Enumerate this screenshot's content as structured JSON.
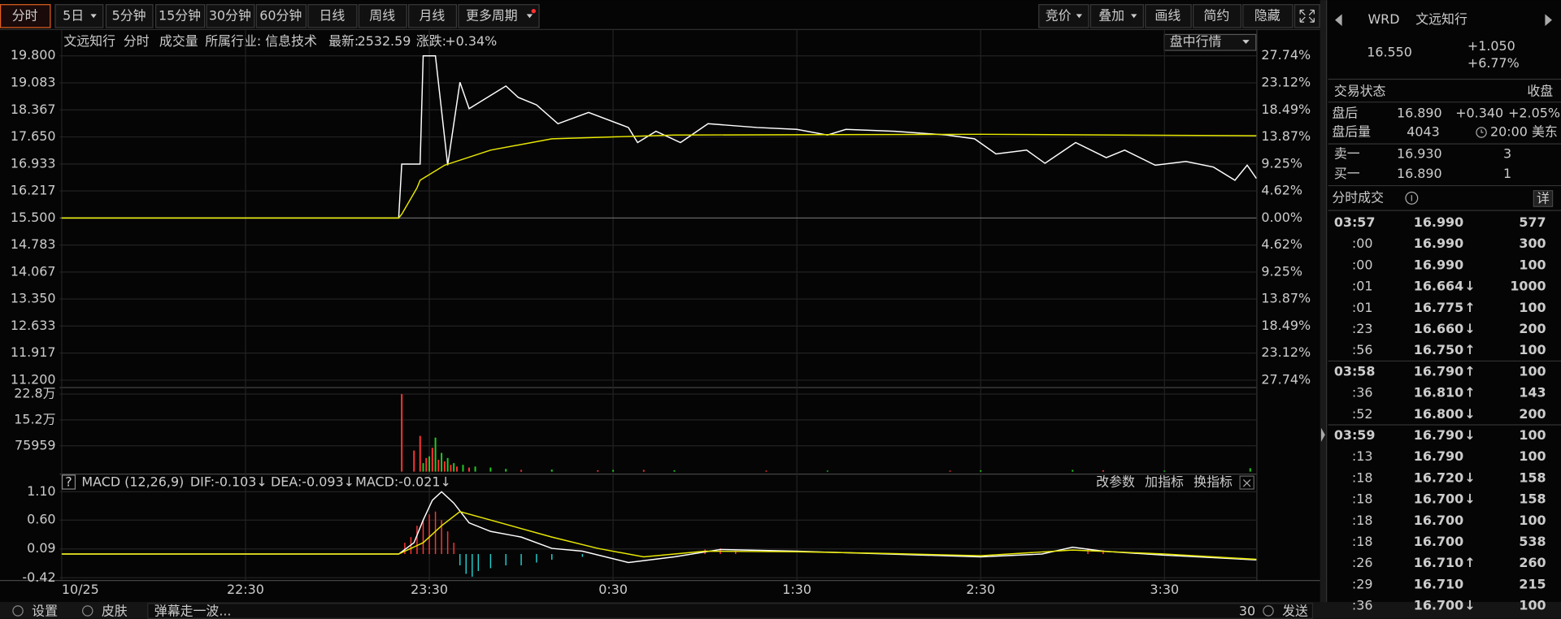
{
  "toolbar": {
    "tabs": [
      "分时",
      "5日",
      "5分钟",
      "15分钟",
      "30分钟",
      "60分钟",
      "日线",
      "周线",
      "月线",
      "更多周期"
    ],
    "right": [
      "竞价",
      "叠加",
      "画线",
      "简约",
      "隐藏"
    ]
  },
  "header": {
    "name": "文远知行",
    "mode": "分时",
    "volume": "成交量",
    "industry": "所属行业: 信息技术",
    "latest_label": "最新:",
    "latest": "2532.59",
    "change_label": "涨跌:",
    "change": "+0.34%",
    "dropdown": "盘中行情"
  },
  "chart_data": [
    {
      "type": "line",
      "x": [
        0,
        110,
        111,
        117,
        118,
        122,
        126,
        130,
        133,
        145,
        149,
        155,
        162,
        172,
        185,
        188,
        194,
        202,
        211,
        227,
        240,
        250,
        256,
        272,
        289,
        298,
        305,
        315,
        321,
        331,
        341,
        347,
        357,
        367,
        376,
        383,
        387,
        390
      ],
      "series": [
        {
          "color": "#ffffff",
          "values": [
            15.5,
            15.5,
            16.93,
            16.93,
            19.8,
            19.8,
            16.9,
            19.1,
            18.4,
            19.0,
            18.7,
            18.5,
            18.0,
            18.3,
            17.9,
            17.5,
            17.8,
            17.5,
            18.0,
            17.9,
            17.85,
            17.7,
            17.85,
            17.8,
            17.7,
            17.6,
            17.2,
            17.3,
            16.95,
            17.5,
            17.1,
            17.3,
            16.9,
            17.0,
            16.85,
            16.5,
            16.9,
            16.55
          ]
        },
        {
          "color": "#e8e800",
          "x": [
            0,
            110,
            111,
            116,
            117,
            125,
            140,
            160,
            200,
            300,
            390
          ],
          "values": [
            15.5,
            15.5,
            15.6,
            16.3,
            16.5,
            16.9,
            17.3,
            17.6,
            17.7,
            17.72,
            17.68
          ]
        }
      ],
      "xlim": [
        0,
        390
      ],
      "xticks": [
        {
          "value": 0,
          "label": "10/25"
        },
        {
          "value": 60,
          "label": "22:30"
        },
        {
          "value": 120,
          "label": "23:30"
        },
        {
          "value": 180,
          "label": "0:30"
        },
        {
          "value": 240,
          "label": "1:30"
        },
        {
          "value": 300,
          "label": "2:30"
        },
        {
          "value": 360,
          "label": "3:30"
        }
      ],
      "ylim": [
        11.2,
        19.8
      ],
      "yticks": [
        {
          "value": 19.8,
          "label": "19.800"
        },
        19.083,
        18.367,
        {
          "value": 17.65,
          "label": "17.650"
        },
        16.933,
        16.217,
        {
          "value": 15.5,
          "label": "15.500"
        },
        14.783,
        14.067,
        {
          "value": 13.35,
          "label": "13.350"
        },
        12.633,
        11.917,
        {
          "value": 11.2,
          "label": "11.200"
        }
      ],
      "y2lim": [
        -27.74,
        27.74
      ],
      "y2ticks": [
        {
          "value": 27.74,
          "label": "27.74%"
        },
        {
          "value": 23.12,
          "label": "23.12%"
        },
        {
          "value": 18.49,
          "label": "18.49%"
        },
        {
          "value": 13.87,
          "label": "13.87%"
        },
        {
          "value": 9.25,
          "label": "9.25%"
        },
        {
          "value": 4.62,
          "label": "4.62%"
        },
        {
          "value": 0,
          "label": "0.00%"
        },
        {
          "value": -4.62,
          "label": "4.62%"
        },
        {
          "value": -9.25,
          "label": "9.25%"
        },
        {
          "value": -13.87,
          "label": "13.87%"
        },
        {
          "value": -18.49,
          "label": "18.49%"
        },
        {
          "value": -23.12,
          "label": "23.12%"
        },
        {
          "value": -27.74,
          "label": "27.74%"
        }
      ],
      "grid": true
    },
    {
      "type": "bar",
      "up": {
        "color": "#ff3333",
        "x": [
          111,
          115,
          117,
          119,
          121,
          123,
          125,
          127,
          129,
          133,
          150,
          175,
          190,
          230,
          290,
          340
        ],
        "values": [
          228000,
          62000,
          105000,
          40000,
          70000,
          35000,
          30000,
          20000,
          15000,
          12000,
          5000,
          4000,
          5000,
          3000,
          3000,
          4000
        ]
      },
      "down": {
        "color": "#22cc22",
        "x": [
          118,
          120,
          122,
          124,
          126,
          128,
          131,
          135,
          140,
          145,
          160,
          180,
          200,
          250,
          300,
          330,
          360,
          388
        ],
        "values": [
          25000,
          45000,
          100000,
          55000,
          40000,
          25000,
          20000,
          15000,
          12000,
          8000,
          6000,
          5000,
          4000,
          3000,
          4000,
          5000,
          3000,
          10000
        ]
      },
      "xlim": [
        0,
        390
      ],
      "ylim": [
        0,
        228000
      ],
      "yticks": [
        {
          "value": 228000,
          "label": "22.8万"
        },
        {
          "value": 152000,
          "label": "15.2万"
        },
        75959
      ]
    },
    {
      "type": "macd",
      "help": "?",
      "title": "MACD (12,26,9)",
      "dif_label": "DIF:-0.103↓",
      "dea_label": "DEA:-0.093↓",
      "macd_label": "MACD:-0.021↓",
      "buttons": [
        "改参数",
        "加指标",
        "换指标"
      ],
      "hist": {
        "x": [
          112,
          114,
          116,
          118,
          120,
          122,
          124,
          126,
          128,
          130,
          132,
          134,
          136,
          140,
          145,
          150,
          155,
          160,
          170,
          210,
          215,
          220,
          335,
          340
        ],
        "values": [
          0.2,
          0.3,
          0.5,
          0.6,
          0.7,
          0.75,
          0.6,
          0.4,
          0.2,
          -0.2,
          -0.35,
          -0.4,
          -0.3,
          -0.25,
          -0.2,
          -0.2,
          -0.15,
          -0.1,
          -0.05,
          0.08,
          0.1,
          0.06,
          0.1,
          0.07
        ]
      },
      "series": [
        {
          "color": "#ffffff",
          "x": [
            0,
            110,
            115,
            118,
            121,
            124,
            128,
            133,
            140,
            150,
            160,
            170,
            185,
            200,
            215,
            240,
            270,
            300,
            320,
            330,
            340,
            360,
            390
          ],
          "values": [
            0,
            0,
            0.2,
            0.6,
            0.95,
            1.1,
            0.9,
            0.55,
            0.4,
            0.3,
            0.1,
            0.05,
            -0.15,
            -0.05,
            0.08,
            0.05,
            0.0,
            -0.05,
            0.0,
            0.12,
            0.05,
            -0.02,
            -0.103
          ]
        },
        {
          "color": "#e8e800",
          "x": [
            0,
            110,
            118,
            124,
            130,
            140,
            150,
            160,
            175,
            190,
            210,
            240,
            270,
            300,
            330,
            360,
            390
          ],
          "values": [
            0,
            0,
            0.2,
            0.5,
            0.75,
            0.6,
            0.45,
            0.3,
            0.1,
            -0.05,
            0.05,
            0.04,
            0.01,
            -0.03,
            0.07,
            0.0,
            -0.093
          ]
        }
      ],
      "xlim": [
        0,
        390
      ],
      "ylim": [
        -0.53,
        1.28
      ],
      "yticks": [
        {
          "value": 1.1,
          "label": "1.10"
        },
        {
          "value": 0.6,
          "label": "0.60"
        },
        0.09,
        -0.42
      ]
    }
  ],
  "quote": {
    "symbol": "WRD",
    "name": "文远知行",
    "price": "16.550",
    "change": "+1.050",
    "change_pct": "+6.77%",
    "status_label": "交易状态",
    "status": "收盘",
    "after_label": "盘后",
    "after_price": "16.890",
    "after_change": "+0.340",
    "after_pct": "+2.05%",
    "after_vol_label": "盘后量",
    "after_vol": "4043",
    "after_time": "20:00 美东",
    "ask_label": "卖一",
    "ask": "16.930",
    "ask_size": "3",
    "bid_label": "买一",
    "bid": "16.890",
    "bid_size": "1",
    "trades_title": "分时成交",
    "detail": "详"
  },
  "trades": [
    {
      "time": "03:57",
      "price": "16.990",
      "volume": "577"
    },
    {
      "time": ":00",
      "price": "16.990",
      "volume": "300"
    },
    {
      "time": ":00",
      "price": "16.990",
      "volume": "100"
    },
    {
      "time": ":01",
      "price": "16.664",
      "arrow": "↓",
      "volume": "1000"
    },
    {
      "time": ":01",
      "price": "16.775",
      "arrow": "↑",
      "volume": "100"
    },
    {
      "time": ":23",
      "price": "16.660",
      "arrow": "↓",
      "volume": "200"
    },
    {
      "time": ":56",
      "price": "16.750",
      "arrow": "↑",
      "volume": "100"
    },
    {
      "time": "03:58",
      "price": "16.790",
      "arrow": "↑",
      "volume": "100"
    },
    {
      "time": ":36",
      "price": "16.810",
      "arrow": "↑",
      "volume": "143"
    },
    {
      "time": ":52",
      "price": "16.800",
      "arrow": "↓",
      "volume": "200"
    },
    {
      "time": "03:59",
      "price": "16.790",
      "arrow": "↓",
      "volume": "100"
    },
    {
      "time": ":13",
      "price": "16.790",
      "volume": "100"
    },
    {
      "time": ":18",
      "price": "16.720",
      "arrow": "↓",
      "volume": "158"
    },
    {
      "time": ":18",
      "price": "16.700",
      "arrow": "↓",
      "volume": "158"
    },
    {
      "time": ":18",
      "price": "16.700",
      "volume": "100"
    },
    {
      "time": ":18",
      "price": "16.700",
      "volume": "538"
    },
    {
      "time": ":26",
      "price": "16.710",
      "arrow": "↑",
      "volume": "260"
    },
    {
      "time": ":29",
      "price": "16.710",
      "volume": "215"
    },
    {
      "time": ":36",
      "price": "16.700",
      "arrow": "↓",
      "volume": "100"
    }
  ],
  "footer": {
    "settings": "设置",
    "skin": "皮肤",
    "placeholder": "弹幕走一波...",
    "count": "30",
    "send": "发送"
  }
}
